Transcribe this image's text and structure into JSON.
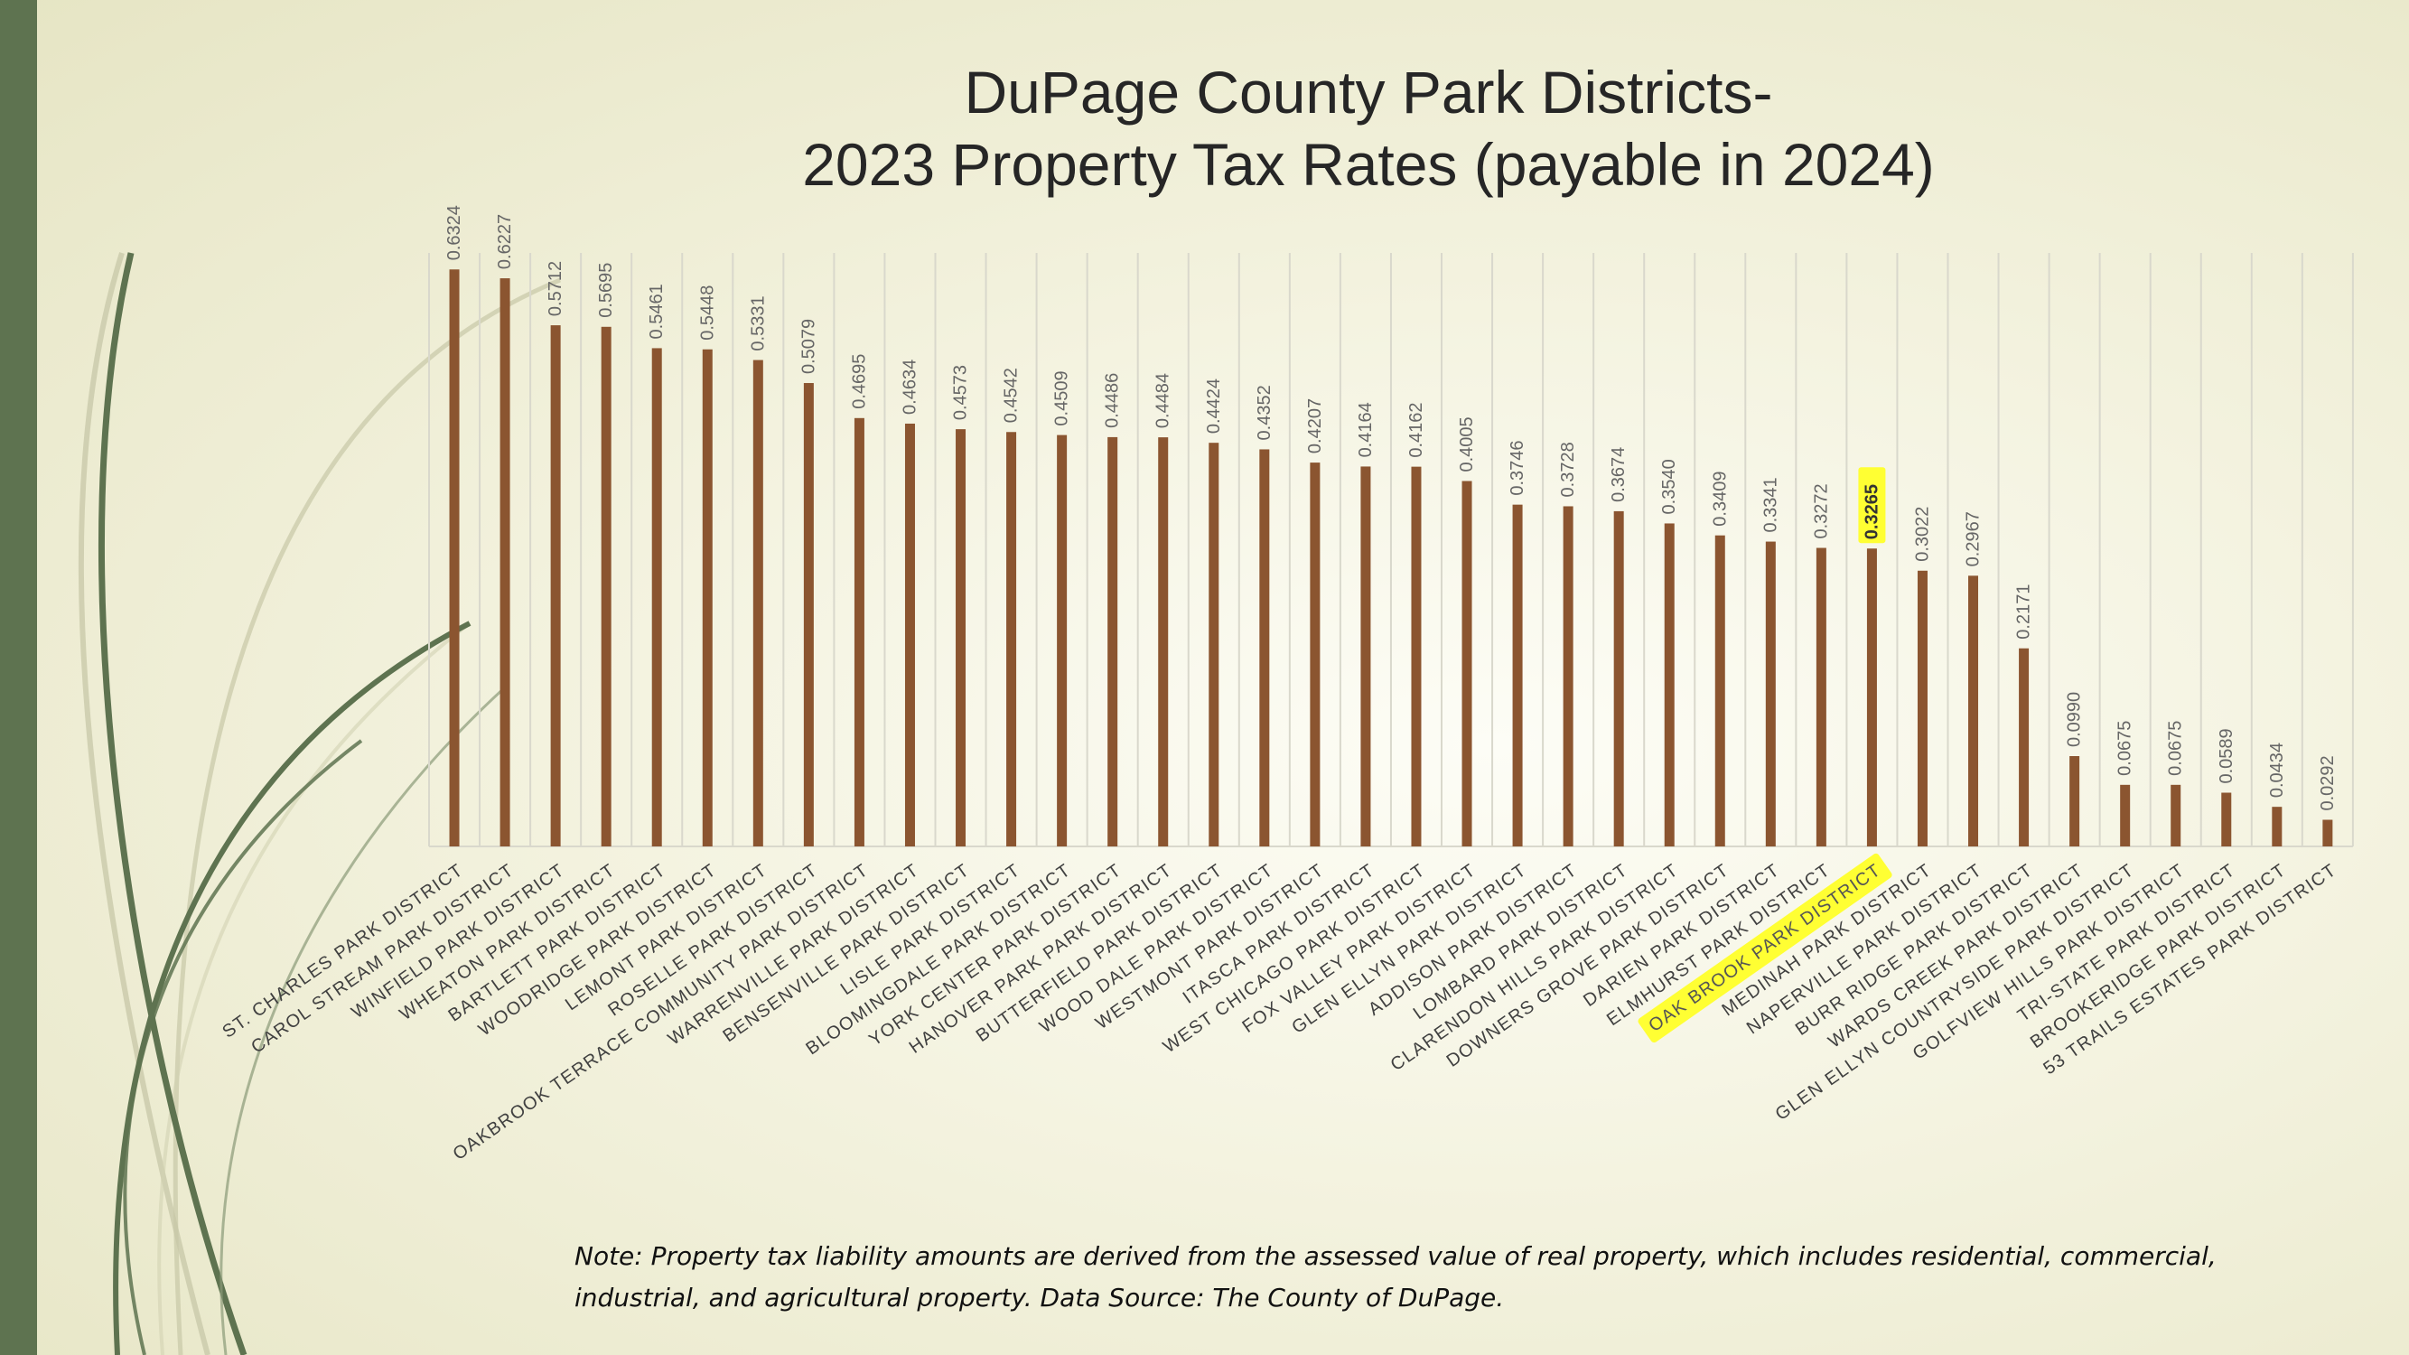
{
  "colors": {
    "bar": "#8b5530",
    "highlight": "#ffff33",
    "grid": "#d9d8cc",
    "label": "#404040",
    "value_label": "#666666",
    "side_bar": "#5e7350"
  },
  "title_line1": "DuPage County Park Districts-",
  "title_line2": "2023 Property Tax Rates (payable in 2024)",
  "note_line1": "Note: Property tax liability amounts are derived from the assessed value of real property, which includes residential, commercial,",
  "note_line2": "industrial, and agricultural property.  Data Source:  The County of DuPage.",
  "chart_data": {
    "type": "bar",
    "title": "DuPage County Park Districts- 2023 Property Tax Rates (payable in 2024)",
    "xlabel": "",
    "ylabel": "",
    "ylim": [
      0,
      0.7
    ],
    "grid": "vertical lines between categories",
    "legend": "none",
    "highlighted_category": "OAK BROOK PARK DISTRICT",
    "categories": [
      "ST. CHARLES PARK DISTRICT",
      "CAROL STREAM PARK DISTRICT",
      "WINFIELD PARK DISTRICT",
      "WHEATON PARK DISTRICT",
      "BARTLETT PARK DISTRICT",
      "WOODRIDGE PARK DISTRICT",
      "LEMONT PARK DISTRICT",
      "ROSELLE PARK DISTRICT",
      "OAKBROOK TERRACE COMMUNITY PARK DISTRICT",
      "WARRENVILLE PARK DISTRICT",
      "BENSENVILLE PARK DISTRICT",
      "LISLE PARK DISTRICT",
      "BLOOMINGDALE PARK DISTRICT",
      "YORK CENTER PARK DISTRICT",
      "HANOVER PARK PARK DISTRICT",
      "BUTTERFIELD PARK DISTRICT",
      "WOOD DALE PARK DISTRICT",
      "WESTMONT PARK DISTRICT",
      "ITASCA PARK DISTRICT",
      "WEST CHICAGO PARK DISTRICT",
      "FOX VALLEY PARK DISTRICT",
      "GLEN ELLYN PARK DISTRICT",
      "ADDISON PARK DISTRICT",
      "LOMBARD PARK DISTRICT",
      "CLARENDON HILLS PARK DISTRICT",
      "DOWNERS GROVE PARK DISTRICT",
      "DARIEN PARK DISTRICT",
      "ELMHURST PARK DISTRICT",
      "OAK BROOK PARK DISTRICT",
      "MEDINAH PARK DISTRICT",
      "NAPERVILLE PARK DISTRICT",
      "BURR RIDGE PARK DISTRICT",
      "WARDS CREEK PARK DISTRICT",
      "GLEN ELLYN COUNTRYSIDE PARK DISTRICT",
      "GOLFVIEW HILLS PARK DISTRICT",
      "TRI-STATE PARK DISTRICT",
      "BROOKERIDGE PARK DISTRICT",
      "53 TRAILS ESTATES PARK DISTRICT"
    ],
    "values": [
      0.6324,
      0.6227,
      0.5712,
      0.5695,
      0.5461,
      0.5448,
      0.5331,
      0.5079,
      0.4695,
      0.4634,
      0.4573,
      0.4542,
      0.4509,
      0.4486,
      0.4484,
      0.4424,
      0.4352,
      0.4207,
      0.4164,
      0.4162,
      0.4005,
      0.3746,
      0.3728,
      0.3674,
      0.354,
      0.3409,
      0.3341,
      0.3272,
      0.3265,
      0.3022,
      0.2967,
      0.2171,
      0.099,
      0.0675,
      0.0675,
      0.0589,
      0.0434,
      0.0292
    ],
    "value_labels": [
      "0.6324",
      "0.6227",
      "0.5712",
      "0.5695",
      "0.5461",
      "0.5448",
      "0.5331",
      "0.5079",
      "0.4695",
      "0.4634",
      "0.4573",
      "0.4542",
      "0.4509",
      "0.4486",
      "0.4484",
      "0.4424",
      "0.4352",
      "0.4207",
      "0.4164",
      "0.4162",
      "0.4005",
      "0.3746",
      "0.3728",
      "0.3674",
      "0.3540",
      "0.3409",
      "0.3341",
      "0.3272",
      "0.3265",
      "0.3022",
      "0.2967",
      "0.2171",
      "0.0990",
      "0.0675",
      "0.0675",
      "0.0589",
      "0.0434",
      "0.0292"
    ]
  }
}
